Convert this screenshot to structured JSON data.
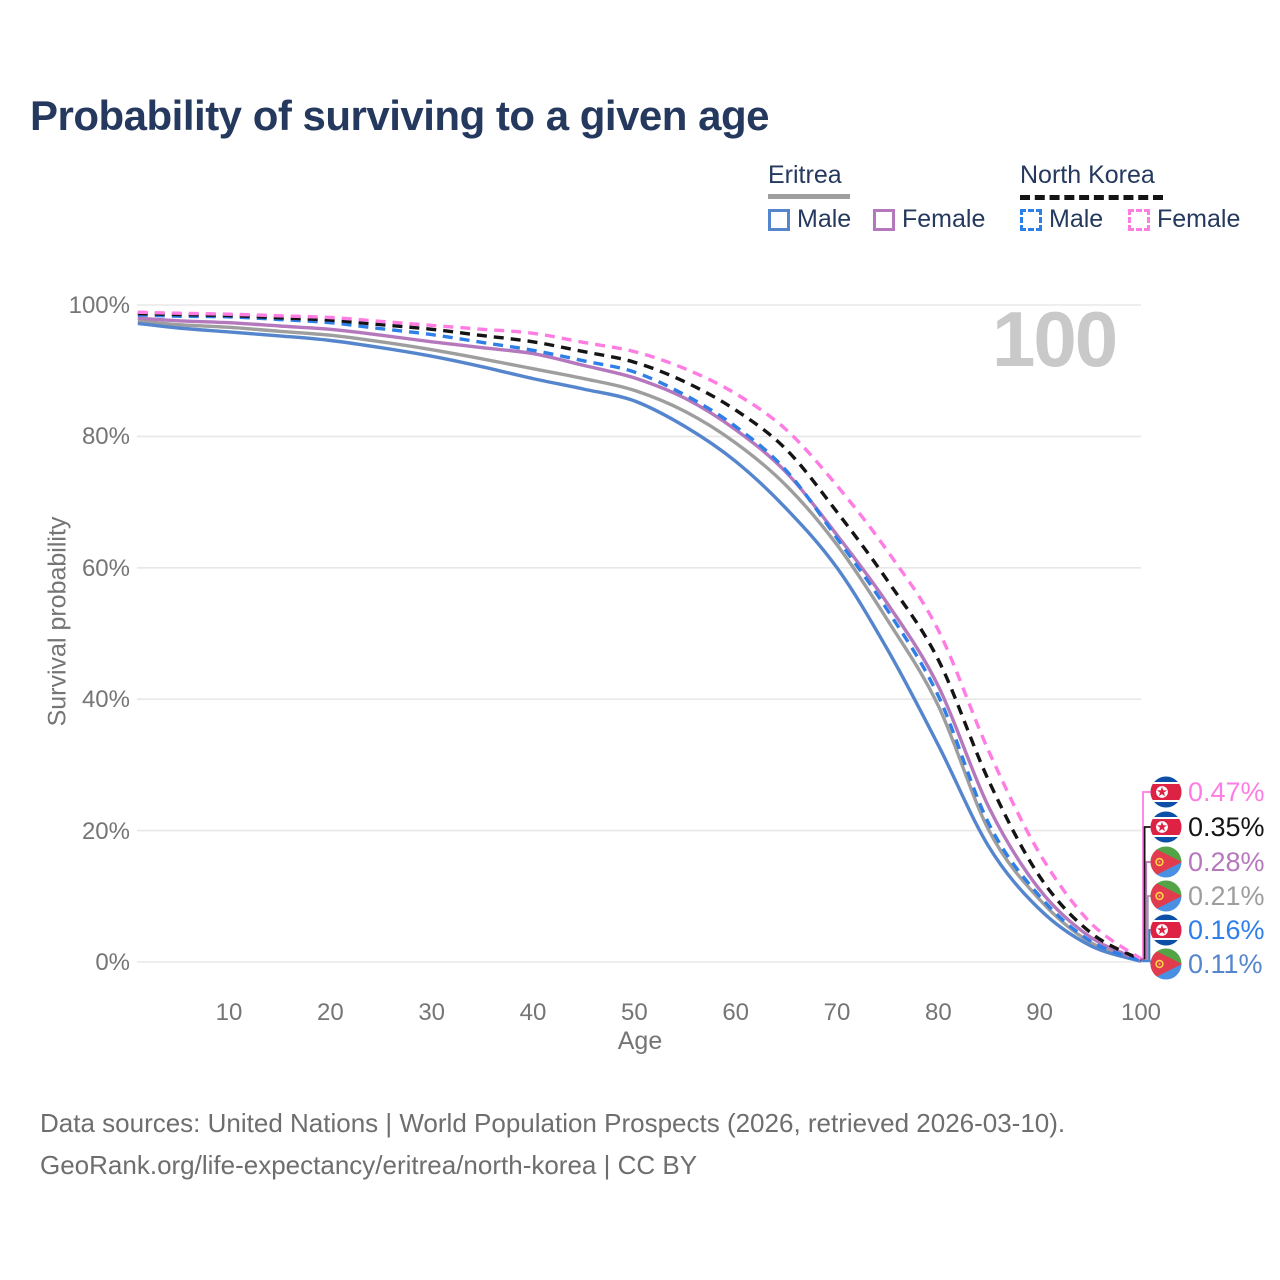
{
  "title": "Probability of surviving to a given age",
  "watermark": "100",
  "legend": {
    "groups": [
      {
        "label": "Eritrea",
        "underline_style": "solid",
        "underline_color": "#9e9e9e",
        "items": [
          {
            "label": "Male",
            "color": "#5585cd",
            "dashed": false
          },
          {
            "label": "Female",
            "color": "#b678bd",
            "dashed": false
          }
        ]
      },
      {
        "label": "North Korea",
        "underline_style": "dashed",
        "underline_color": "#141414",
        "items": [
          {
            "label": "Male",
            "color": "#2f7fe8",
            "dashed": true
          },
          {
            "label": "Female",
            "color": "#ff7de3",
            "dashed": true
          }
        ]
      }
    ]
  },
  "y_axis": {
    "label": "Survival probability",
    "ticks": [
      "100%",
      "80%",
      "60%",
      "40%",
      "20%",
      "0%"
    ],
    "tick_values": [
      100,
      80,
      60,
      40,
      20,
      0
    ]
  },
  "x_axis": {
    "label": "Age",
    "ticks": [
      "10",
      "20",
      "30",
      "40",
      "50",
      "60",
      "70",
      "80",
      "90",
      "100"
    ],
    "tick_values": [
      10,
      20,
      30,
      40,
      50,
      60,
      70,
      80,
      90,
      100
    ]
  },
  "end_labels": [
    {
      "value": "0.47%",
      "flag": "nk",
      "color": "#ff7de3",
      "series": "North Korea — Female"
    },
    {
      "value": "0.35%",
      "flag": "nk",
      "color": "#141414",
      "series": "North Korea — Both sexes"
    },
    {
      "value": "0.28%",
      "flag": "er",
      "color": "#b678bd",
      "series": "Eritrea — Female"
    },
    {
      "value": "0.21%",
      "flag": "er",
      "color": "#9e9e9e",
      "series": "Eritrea — Both sexes"
    },
    {
      "value": "0.16%",
      "flag": "nk",
      "color": "#2f7fe8",
      "series": "North Korea — Male"
    },
    {
      "value": "0.11%",
      "flag": "er",
      "color": "#5585cd",
      "series": "Eritrea — Male"
    }
  ],
  "source": {
    "line1": "Data sources: United Nations | World Population Prospects (2026, retrieved 2026-03-10).",
    "line2": "GeoRank.org/life-expectancy/eritrea/north-korea | CC BY"
  },
  "chart_data": {
    "type": "line",
    "title": "Probability of surviving to a given age",
    "xlabel": "Age",
    "ylabel": "Survival probability",
    "xlim": [
      0,
      100
    ],
    "ylim_pct": [
      0,
      100
    ],
    "grid": "horizontal",
    "legend_position": "top-right",
    "x_anchor_ages": [
      1,
      5,
      10,
      15,
      20,
      25,
      30,
      35,
      40,
      45,
      50,
      55,
      60,
      65,
      70,
      75,
      80,
      85,
      90,
      95,
      100
    ],
    "series": [
      {
        "name": "Eritrea — Both sexes",
        "color": "#9e9e9e",
        "dashed": false,
        "values_pct": [
          97.6,
          97.0,
          96.6,
          96.0,
          95.4,
          94.4,
          93.2,
          91.8,
          90.3,
          88.8,
          87.0,
          83.8,
          79.0,
          72.5,
          63.5,
          52.0,
          39.0,
          20.0,
          9.5,
          3.0,
          0.21
        ]
      },
      {
        "name": "Eritrea — Male",
        "color": "#5585cd",
        "dashed": false,
        "values_pct": [
          97.2,
          96.5,
          95.9,
          95.3,
          94.6,
          93.5,
          92.2,
          90.6,
          88.8,
          87.2,
          85.4,
          81.5,
          76.2,
          69.0,
          60.0,
          47.5,
          33.0,
          17.5,
          8.0,
          2.5,
          0.11
        ]
      },
      {
        "name": "Eritrea — Female",
        "color": "#b678bd",
        "dashed": false,
        "values_pct": [
          98.0,
          97.6,
          97.3,
          96.8,
          96.3,
          95.4,
          94.4,
          93.5,
          92.6,
          90.8,
          88.9,
          85.8,
          81.0,
          74.5,
          65.0,
          54.5,
          42.0,
          23.5,
          11.0,
          3.8,
          0.28
        ]
      },
      {
        "name": "North Korea — Male",
        "color": "#2f7fe8",
        "dashed": true,
        "values_pct": [
          98.5,
          98.3,
          98.2,
          97.8,
          97.3,
          96.4,
          95.5,
          94.3,
          93.1,
          91.5,
          89.8,
          86.3,
          81.5,
          74.8,
          64.5,
          53.5,
          40.5,
          21.0,
          10.0,
          3.2,
          0.16
        ]
      },
      {
        "name": "North Korea — Both sexes",
        "color": "#141414",
        "dashed": true,
        "values_pct": [
          98.7,
          98.55,
          98.4,
          98.05,
          97.7,
          97.0,
          96.3,
          95.35,
          94.4,
          92.9,
          91.3,
          88.3,
          84.0,
          78.0,
          68.5,
          58.0,
          46.0,
          27.5,
          13.0,
          4.5,
          0.35
        ]
      },
      {
        "name": "North Korea — Female",
        "color": "#ff7de3",
        "dashed": true,
        "values_pct": [
          98.9,
          98.75,
          98.6,
          98.35,
          98.1,
          97.5,
          96.9,
          96.3,
          95.7,
          94.3,
          92.9,
          90.3,
          86.5,
          81.0,
          72.5,
          62.5,
          50.5,
          32.0,
          16.5,
          6.0,
          0.47
        ]
      }
    ]
  }
}
